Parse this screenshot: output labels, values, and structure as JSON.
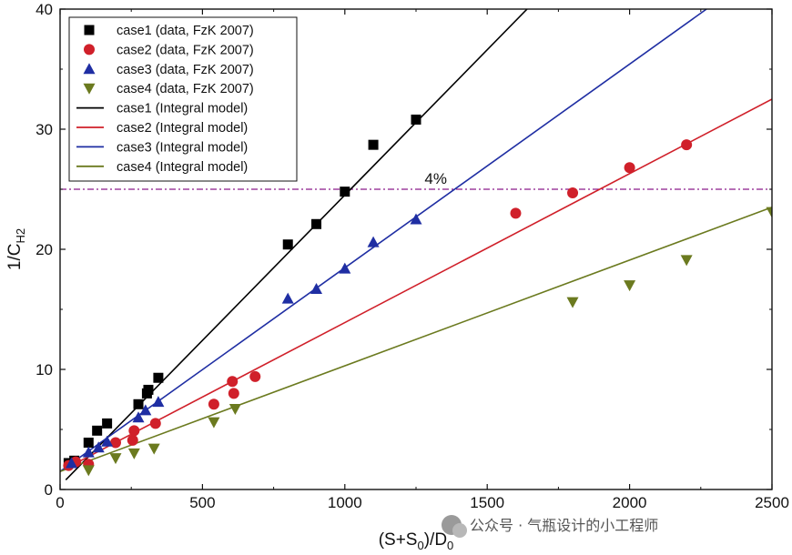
{
  "chart_data": {
    "type": "scatter",
    "xlabel_main": "(S+S",
    "xlabel_sub1": "0",
    "xlabel_mid": ")/D",
    "xlabel_sub2": "0",
    "ylabel_main": "1/C",
    "ylabel_sub": "H2",
    "xlim": [
      0,
      2500
    ],
    "ylim": [
      0,
      40
    ],
    "xticks": [
      0,
      500,
      1000,
      1500,
      2000,
      2500
    ],
    "yticks": [
      0,
      10,
      20,
      30,
      40
    ],
    "grid": false,
    "legend_position": "top-left",
    "series": [
      {
        "name": "case1 (data, FzK 2007)",
        "kind": "scatter",
        "marker": "square",
        "color": "#000000",
        "x": [
          30,
          50,
          100,
          130,
          165,
          275,
          305,
          310,
          345,
          800,
          900,
          1000,
          1100,
          1250
        ],
        "y": [
          2.2,
          2.4,
          3.9,
          4.9,
          5.5,
          7.1,
          8.0,
          8.3,
          9.3,
          20.4,
          22.1,
          24.8,
          28.7,
          30.8
        ]
      },
      {
        "name": "case2 (data, FzK 2007)",
        "kind": "scatter",
        "marker": "circle",
        "color": "#d0202a",
        "x": [
          30,
          55,
          100,
          195,
          255,
          260,
          335,
          540,
          605,
          610,
          685,
          1600,
          1800,
          2000,
          2200
        ],
        "y": [
          2.0,
          2.3,
          2.1,
          3.9,
          4.1,
          4.9,
          5.5,
          7.1,
          9.0,
          8.0,
          9.4,
          23.0,
          24.7,
          26.8,
          28.7
        ]
      },
      {
        "name": "case3 (data, FzK 2007)",
        "kind": "scatter",
        "marker": "triangle-up",
        "color": "#1f2ea3",
        "x": [
          40,
          100,
          135,
          165,
          275,
          300,
          345,
          800,
          900,
          1000,
          1100,
          1250
        ],
        "y": [
          2.2,
          3.1,
          3.5,
          4.0,
          6.0,
          6.6,
          7.3,
          15.9,
          16.7,
          18.4,
          20.6,
          22.5
        ],
        "y_note": "values read from axis"
      },
      {
        "name": "case4 (data, FzK 2007)",
        "kind": "scatter",
        "marker": "triangle-down",
        "color": "#6b7a1f",
        "x": [
          100,
          195,
          260,
          330,
          540,
          615,
          1800,
          2000,
          2200,
          2500
        ],
        "y": [
          1.6,
          2.6,
          3.0,
          3.4,
          5.6,
          6.7,
          15.6,
          17.0,
          19.1,
          23.1
        ]
      },
      {
        "name": "case1 (Integral model)",
        "kind": "line",
        "color": "#000000",
        "x": [
          20,
          1640
        ],
        "y": [
          0.8,
          40
        ]
      },
      {
        "name": "case2 (Integral model)",
        "kind": "line",
        "color": "#d0202a",
        "x": [
          0,
          2500
        ],
        "y": [
          1.5,
          32.5
        ]
      },
      {
        "name": "case3 (Integral model)",
        "kind": "line",
        "color": "#1f2ea3",
        "x": [
          0,
          2270
        ],
        "y": [
          1.5,
          40
        ]
      },
      {
        "name": "case4 (Integral model)",
        "kind": "line",
        "color": "#6b7a1f",
        "x": [
          0,
          2500
        ],
        "y": [
          1.5,
          23.5
        ]
      }
    ],
    "reference_line": {
      "y": 25,
      "label": "4%",
      "label_x": 1280,
      "color": "#8b1a8b",
      "style": "dash-dot"
    }
  },
  "watermark": {
    "text": "公众号 · 气瓶设计的小工程师"
  }
}
